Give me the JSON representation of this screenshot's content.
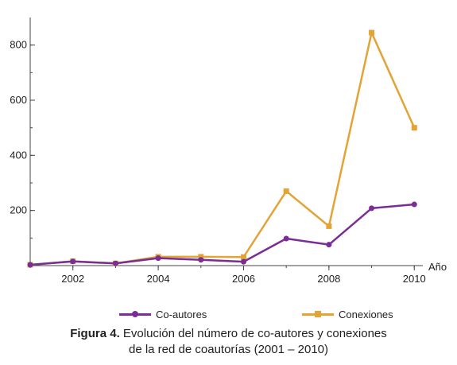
{
  "chart_data": {
    "type": "line",
    "x": [
      2001,
      2002,
      2003,
      2004,
      2005,
      2006,
      2007,
      2008,
      2009,
      2010
    ],
    "series": [
      {
        "name": "Co-autores",
        "color": "#7a2d96",
        "marker": "circle",
        "values": [
          3,
          15,
          8,
          27,
          21,
          14,
          98,
          76,
          208,
          222
        ]
      },
      {
        "name": "Conexiones",
        "color": "#e3a335",
        "marker": "square",
        "values": [
          3,
          16,
          8,
          32,
          32,
          31,
          270,
          143,
          845,
          500
        ]
      }
    ],
    "xlabel": "Año",
    "ylabel": "",
    "xlim": [
      2001,
      2010.2
    ],
    "ylim": [
      0,
      900
    ],
    "xticks": [
      2002,
      2004,
      2006,
      2008,
      2010
    ],
    "yticks": [
      200,
      400,
      600,
      800
    ],
    "grid": false,
    "legend_position": "bottom"
  },
  "caption": {
    "label": "Figura 4.",
    "line1": " Evolución del número de co-autores y conexiones",
    "line2": "de la red de coautorías (2001 – 2010)"
  }
}
